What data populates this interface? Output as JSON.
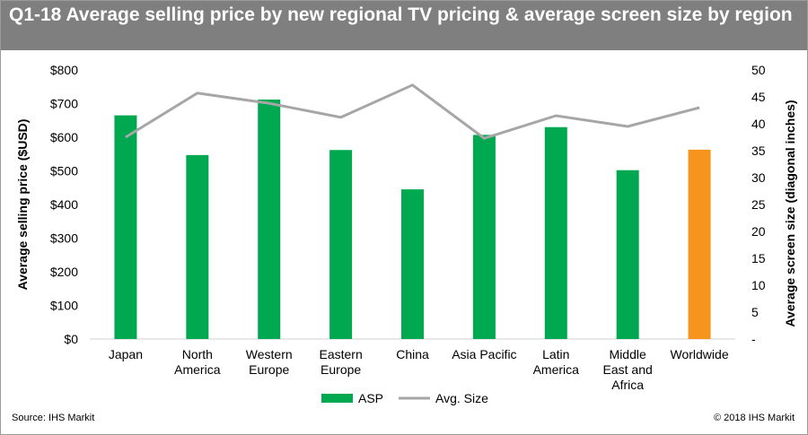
{
  "title": "Q1-18 Average selling price by new regional TV pricing & average screen size by region",
  "footer": {
    "source": "Source: IHS Markit",
    "copyright": "© 2018 IHS Markit"
  },
  "colors": {
    "asp": "#00a84f",
    "worldwide": "#f7941d",
    "size_line": "#a6a6a6",
    "title_bg": "#7f7f7f"
  },
  "chart_data": {
    "type": "bar",
    "categories": [
      [
        "Japan"
      ],
      [
        "North",
        "America"
      ],
      [
        "Western",
        "Europe"
      ],
      [
        "Eastern",
        "Europe"
      ],
      [
        "China"
      ],
      [
        "Asia Pacific"
      ],
      [
        "Latin",
        "America"
      ],
      [
        "Middle",
        "East and",
        "Africa"
      ],
      [
        "Worldwide"
      ]
    ],
    "series": [
      {
        "name": "ASP",
        "type": "bar",
        "axis": "left",
        "values": [
          665,
          547,
          712,
          562,
          445,
          607,
          630,
          502,
          563
        ],
        "highlight_index": 8
      },
      {
        "name": "Avg. Size",
        "type": "line",
        "axis": "right",
        "values": [
          37.5,
          45.7,
          43.8,
          41.2,
          47.2,
          37.3,
          41.5,
          39.5,
          43.0
        ]
      }
    ],
    "ylabel": "Average selling price ($USD)",
    "y2label": "Average screen size (diagonal inches)",
    "ylim": [
      0,
      800
    ],
    "y_ticks": [
      "$0",
      "$100",
      "$200",
      "$300",
      "$400",
      "$500",
      "$600",
      "$700",
      "$800"
    ],
    "y2lim": [
      0,
      50
    ],
    "y2_ticks": [
      "-",
      "5",
      "10",
      "15",
      "20",
      "25",
      "30",
      "35",
      "40",
      "45",
      "50"
    ],
    "grid": false,
    "legend": "bottom"
  }
}
